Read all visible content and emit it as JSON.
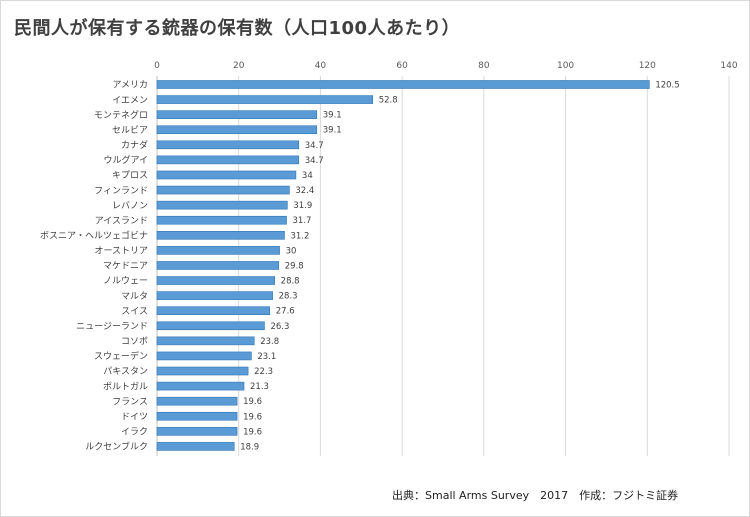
{
  "chart_data": {
    "type": "bar",
    "orientation": "horizontal",
    "title": "民間人が保有する銃器の保有数（人口100人あたり）",
    "source": "出典：Small Arms Survey　2017　作成：フジトミ証券",
    "categories": [
      "アメリカ",
      "イエメン",
      "モンテネグロ",
      "セルビア",
      "カナダ",
      "ウルグアイ",
      "キプロス",
      "フィンランド",
      "レバノン",
      "アイスランド",
      "ボスニア・ヘルツェゴビナ",
      "オーストリア",
      "マケドニア",
      "ノルウェー",
      "マルタ",
      "スイス",
      "ニュージーランド",
      "コソボ",
      "スウェーデン",
      "パキスタン",
      "ポルトガル",
      "フランス",
      "ドイツ",
      "イラク",
      "ルクセンブルク"
    ],
    "values": [
      120.5,
      52.8,
      39.1,
      39.1,
      34.7,
      34.7,
      34,
      32.4,
      31.9,
      31.7,
      31.2,
      30,
      29.8,
      28.8,
      28.3,
      27.6,
      26.3,
      23.8,
      23.1,
      22.3,
      21.3,
      19.6,
      19.6,
      19.6,
      18.9
    ],
    "data_labels": [
      "120.5",
      "52.8",
      "39.1",
      "39.1",
      "34.7",
      "34.7",
      "34",
      "32.4",
      "31.9",
      "31.7",
      "31.2",
      "30",
      "29.8",
      "28.8",
      "28.3",
      "27.6",
      "26.3",
      "23.8",
      "23.1",
      "22.3",
      "21.3",
      "19.6",
      "19.6",
      "19.6",
      "18.9"
    ],
    "xlim": [
      0,
      140
    ],
    "x_ticks": [
      "0",
      "20",
      "40",
      "60",
      "80",
      "100",
      "120",
      "140"
    ],
    "x_axis_position": "top",
    "grid": true,
    "legend": "none",
    "bar_color": "#5b9bd5",
    "bar_edge_color": "#2e75b6",
    "grid_color": "#d9d9d9"
  }
}
